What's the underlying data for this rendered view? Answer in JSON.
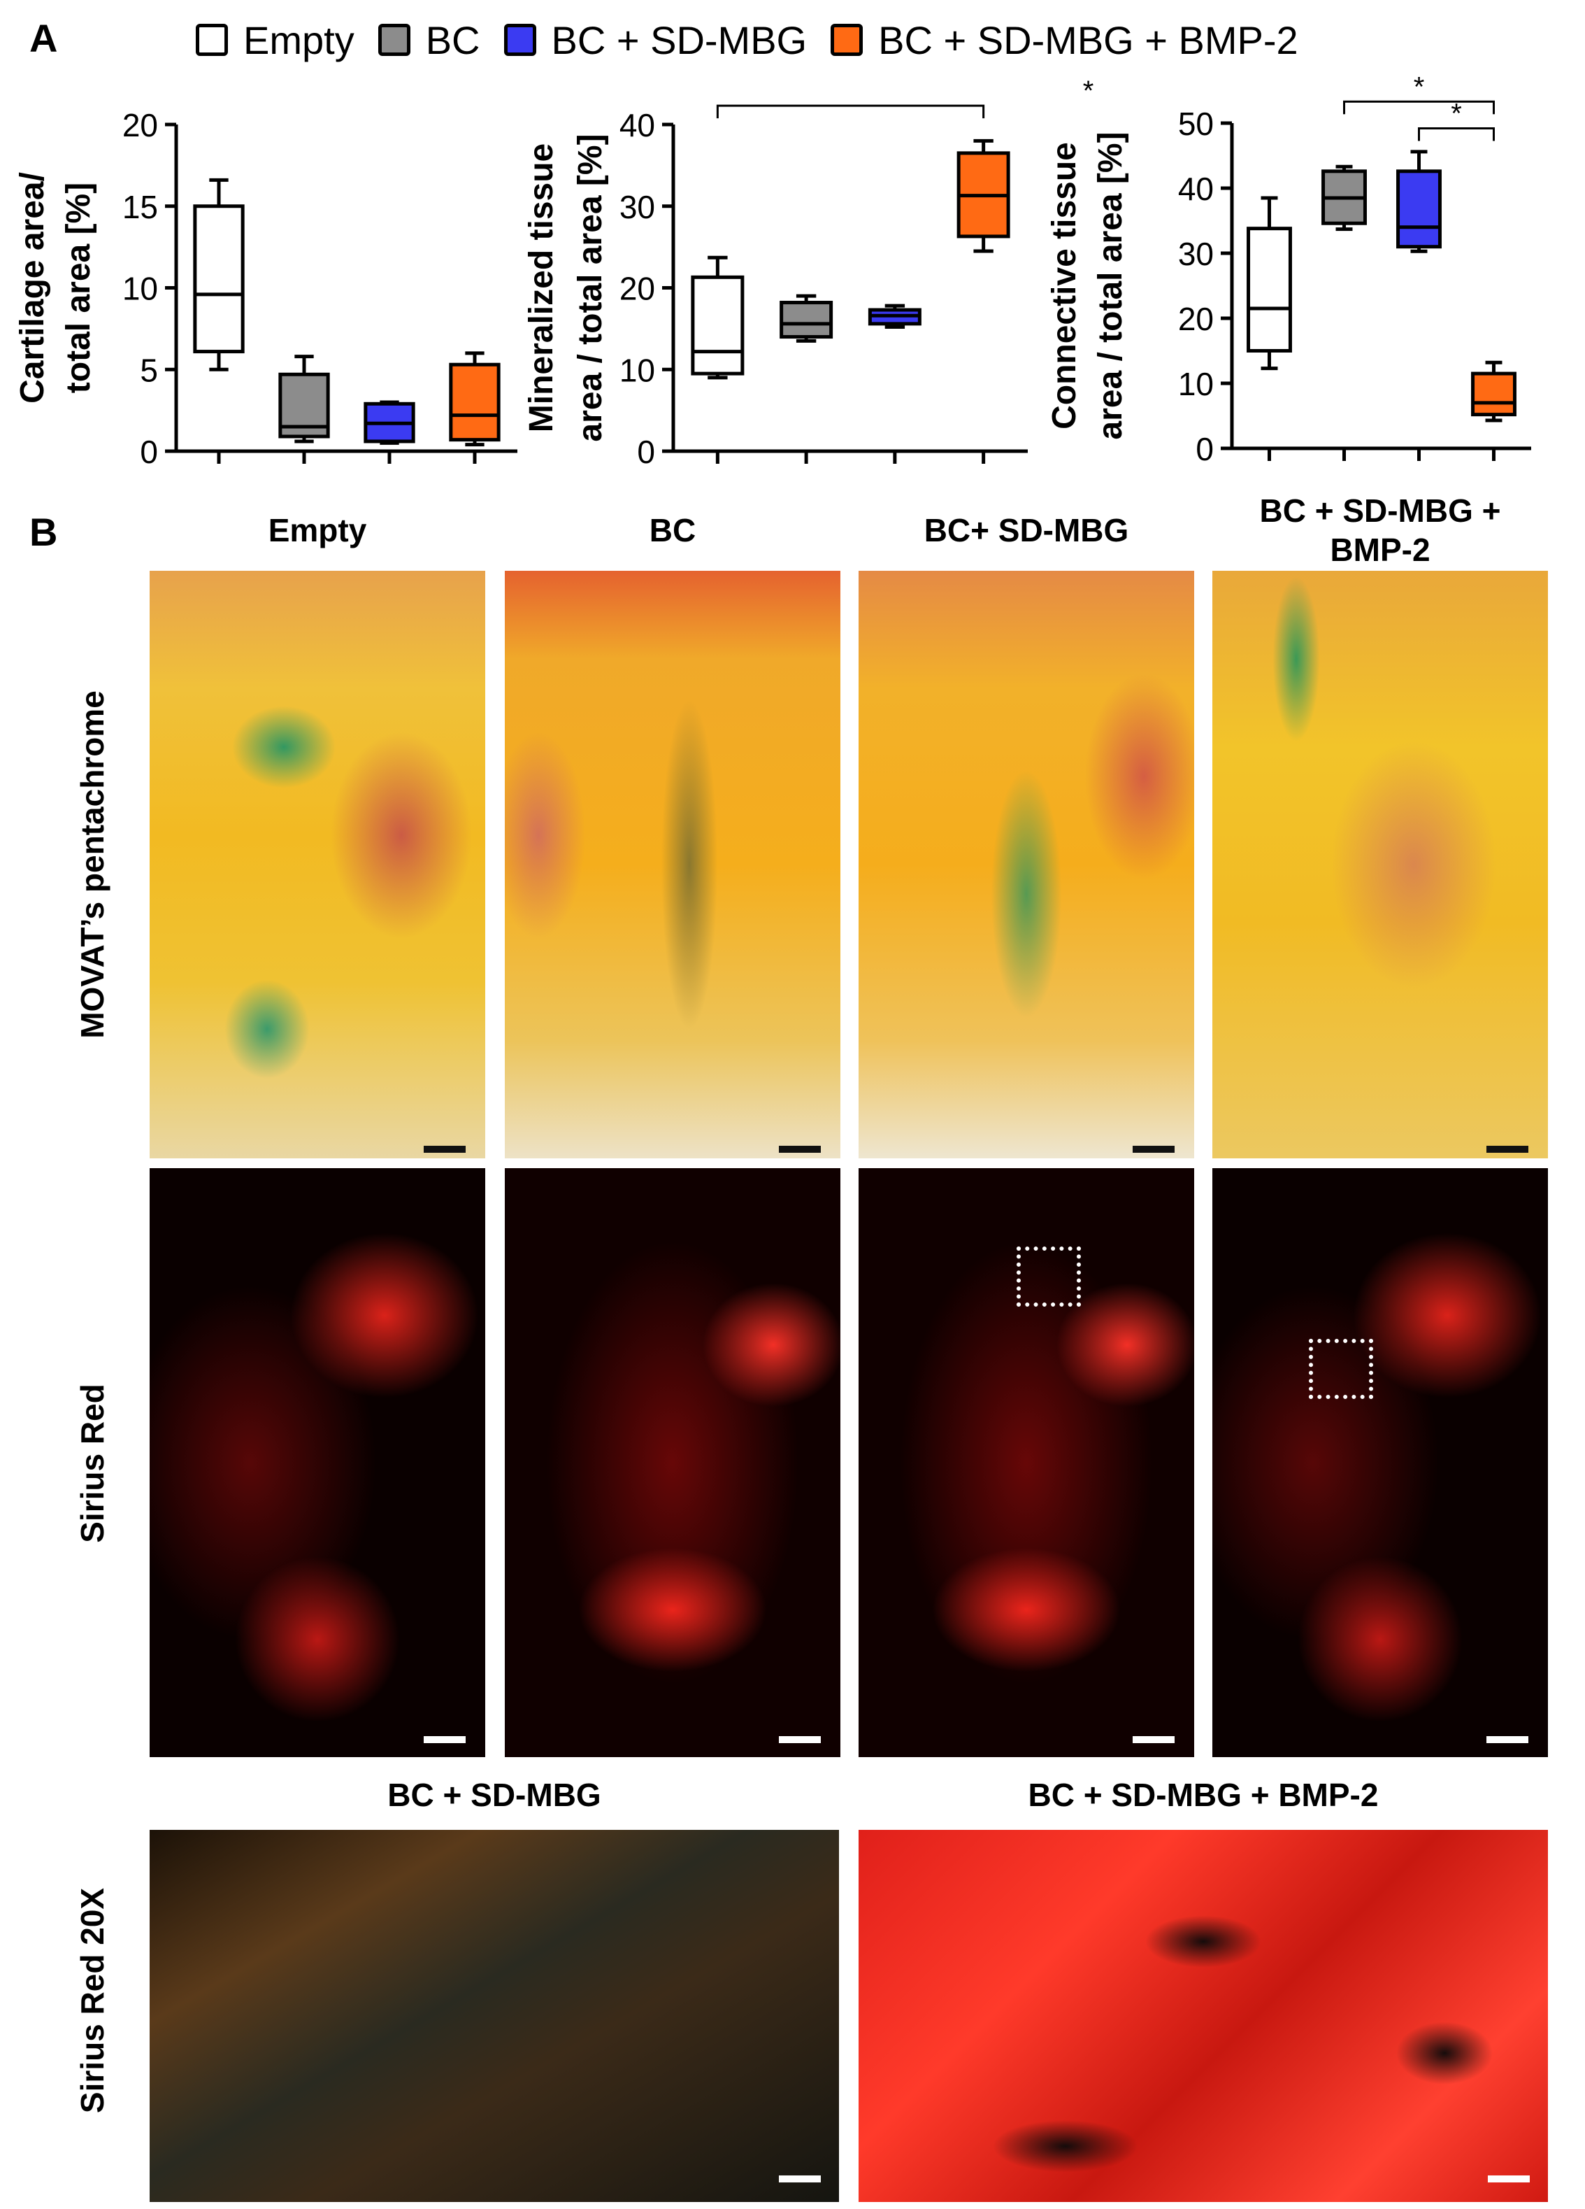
{
  "panels": {
    "a": "A",
    "b": "B"
  },
  "legend": [
    {
      "name": "Empty",
      "color": "#ffffff"
    },
    {
      "name": "BC",
      "color": "#8c8c8c"
    },
    {
      "name": "BC + SD-MBG",
      "color": "#3b3bf2"
    },
    {
      "name": "BC + SD-MBG + BMP-2",
      "color": "#ff6a14"
    }
  ],
  "chart_data": [
    {
      "type": "box",
      "ylabel_lines": [
        "Cartilage area/",
        "total area [%]"
      ],
      "ylim": [
        0,
        20
      ],
      "yticks": [
        0,
        5,
        10,
        15,
        20
      ],
      "boxes": [
        {
          "min": 5.0,
          "q1": 6.1,
          "median": 9.6,
          "q3": 15.0,
          "max": 16.6
        },
        {
          "min": 0.6,
          "q1": 0.9,
          "median": 1.5,
          "q3": 4.7,
          "max": 5.8
        },
        {
          "min": 0.5,
          "q1": 0.6,
          "median": 1.7,
          "q3": 2.9,
          "max": 3.0
        },
        {
          "min": 0.4,
          "q1": 0.7,
          "median": 2.2,
          "q3": 5.3,
          "max": 6.0
        }
      ],
      "significance": []
    },
    {
      "type": "box",
      "ylabel_lines": [
        "Mineralized tissue",
        "area / total area [%]"
      ],
      "ylim": [
        0,
        40
      ],
      "yticks": [
        0,
        10,
        20,
        30,
        40
      ],
      "boxes": [
        {
          "min": 9.0,
          "q1": 9.5,
          "median": 12.2,
          "q3": 21.3,
          "max": 23.7
        },
        {
          "min": 13.5,
          "q1": 14.0,
          "median": 15.6,
          "q3": 18.2,
          "max": 19.0
        },
        {
          "min": 15.2,
          "q1": 15.6,
          "median": 16.6,
          "q3": 17.3,
          "max": 17.8
        },
        {
          "min": 24.5,
          "q1": 26.3,
          "median": 31.3,
          "q3": 36.5,
          "max": 38.0
        }
      ],
      "significance": [
        {
          "from": 0,
          "to": 3,
          "level": 42.3,
          "label": "*"
        }
      ]
    },
    {
      "type": "box",
      "ylabel_lines": [
        "Connective tissue",
        "area / total area [%]"
      ],
      "ylim": [
        0,
        50
      ],
      "yticks": [
        0,
        10,
        20,
        30,
        40,
        50
      ],
      "boxes": [
        {
          "min": 12.3,
          "q1": 15.0,
          "median": 21.5,
          "q3": 33.8,
          "max": 38.5
        },
        {
          "min": 33.7,
          "q1": 34.6,
          "median": 38.5,
          "q3": 42.6,
          "max": 43.3
        },
        {
          "min": 30.3,
          "q1": 31.0,
          "median": 34.0,
          "q3": 42.6,
          "max": 45.6
        },
        {
          "min": 4.3,
          "q1": 5.2,
          "median": 7.0,
          "q3": 11.5,
          "max": 13.2
        }
      ],
      "significance": [
        {
          "from": 1,
          "to": 3,
          "level": 53.3,
          "label": "*"
        },
        {
          "from": 2,
          "to": 3,
          "level": 49.2,
          "label": "*"
        }
      ]
    }
  ],
  "histology": {
    "columns": [
      "Empty",
      "BC",
      "BC+ SD-MBG",
      "BC + SD-MBG +\nBMP-2"
    ],
    "rows": [
      "MOVAT’s pentachrome",
      "Sirius Red",
      "Sirius Red 20X"
    ],
    "zoom_columns": [
      "BC + SD-MBG",
      "BC + SD-MBG + BMP-2"
    ]
  }
}
